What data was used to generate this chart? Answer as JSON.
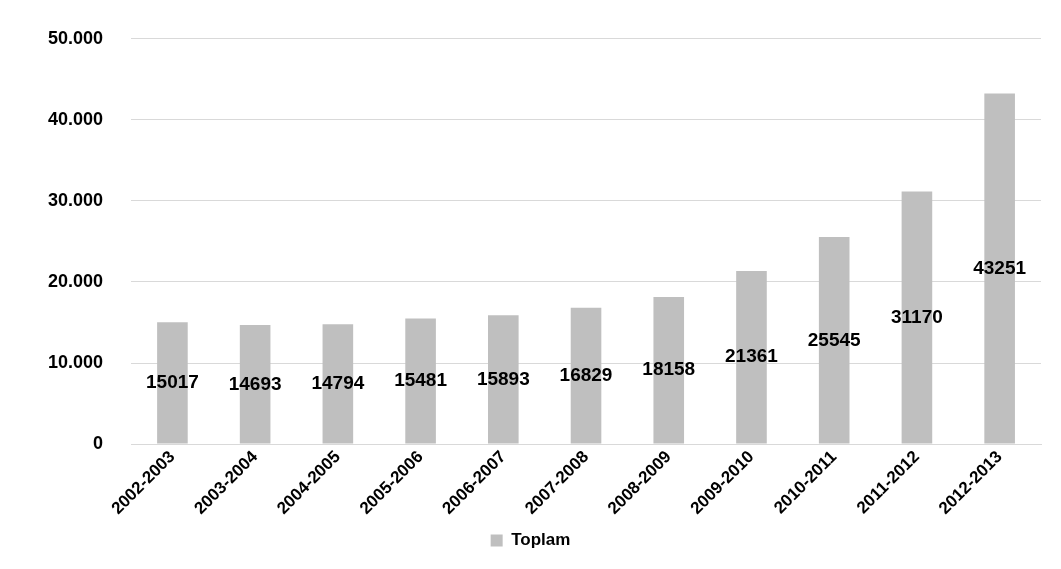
{
  "chart_data": {
    "type": "bar",
    "categories": [
      "2002-2003",
      "2003-2004",
      "2004-2005",
      "2005-2006",
      "2006-2007",
      "2007-2008",
      "2008-2009",
      "2009-2010",
      "2010-2011",
      "2011-2012",
      "2012-2013"
    ],
    "series": [
      {
        "name": "Toplam",
        "color": "#bfbfbf",
        "values": [
          15017,
          14693,
          14794,
          15481,
          15893,
          16829,
          18158,
          21361,
          25545,
          31170,
          43251
        ]
      }
    ],
    "ylim": [
      0,
      50000
    ],
    "yticks": [
      0,
      {
        "value": 10000,
        "label": "10.000"
      },
      {
        "value": 20000,
        "label": "20.000"
      },
      {
        "value": 30000,
        "label": "30.000"
      },
      {
        "value": 40000,
        "label": "40.000"
      },
      {
        "value": 50000,
        "label": "50.000"
      }
    ],
    "grid": "y",
    "legend": "bottom",
    "data_labels": true
  }
}
